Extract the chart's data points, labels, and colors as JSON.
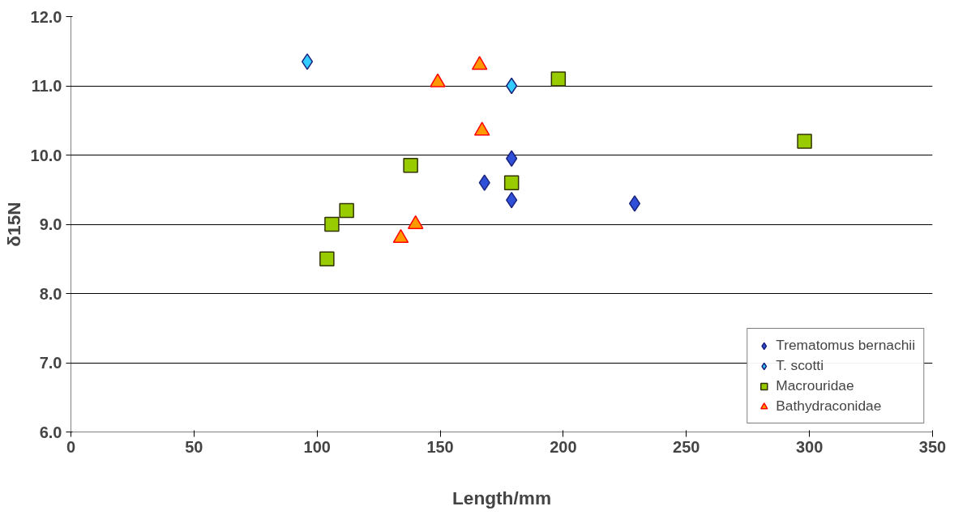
{
  "chart_data": {
    "type": "scatter",
    "xlabel": "Length/mm",
    "ylabel": "δ15N",
    "xlim": [
      0,
      350
    ],
    "xticks": [
      0,
      50,
      100,
      150,
      200,
      250,
      300,
      350
    ],
    "ylim": [
      6,
      12
    ],
    "yticks": [
      {
        "value": 6,
        "label": "6.0"
      },
      {
        "value": 7,
        "label": "7.0"
      },
      {
        "value": 8,
        "label": "8.0"
      },
      {
        "value": 9,
        "label": "9.0"
      },
      {
        "value": 10,
        "label": "10.0"
      },
      {
        "value": 11,
        "label": "11.0"
      },
      {
        "value": 12,
        "label": "12.0"
      }
    ],
    "grid": "y",
    "legend": "bottom right",
    "series": [
      {
        "name": "Trematomus bernachii",
        "color": "#2f4fd8",
        "marker": "diamond",
        "x": [
          168,
          179,
          179,
          229
        ],
        "values": [
          9.6,
          9.95,
          9.35,
          9.3
        ]
      },
      {
        "name": "T. scotti",
        "color": "#33ccff",
        "marker": "diamond",
        "x": [
          96,
          179
        ],
        "values": [
          11.35,
          11.0
        ]
      },
      {
        "name": "Macrouridae",
        "color": "#99cc00",
        "marker": "square",
        "x": [
          104,
          106,
          112,
          138,
          179,
          198,
          298
        ],
        "values": [
          8.5,
          9.0,
          9.2,
          9.85,
          9.6,
          11.1,
          10.2
        ]
      },
      {
        "name": "Bathydraconidae",
        "color": "#ff9900",
        "marker": "triangle",
        "x": [
          149,
          166,
          167,
          140,
          134
        ],
        "values": [
          11.05,
          11.3,
          10.35,
          9.0,
          8.8
        ]
      }
    ]
  }
}
